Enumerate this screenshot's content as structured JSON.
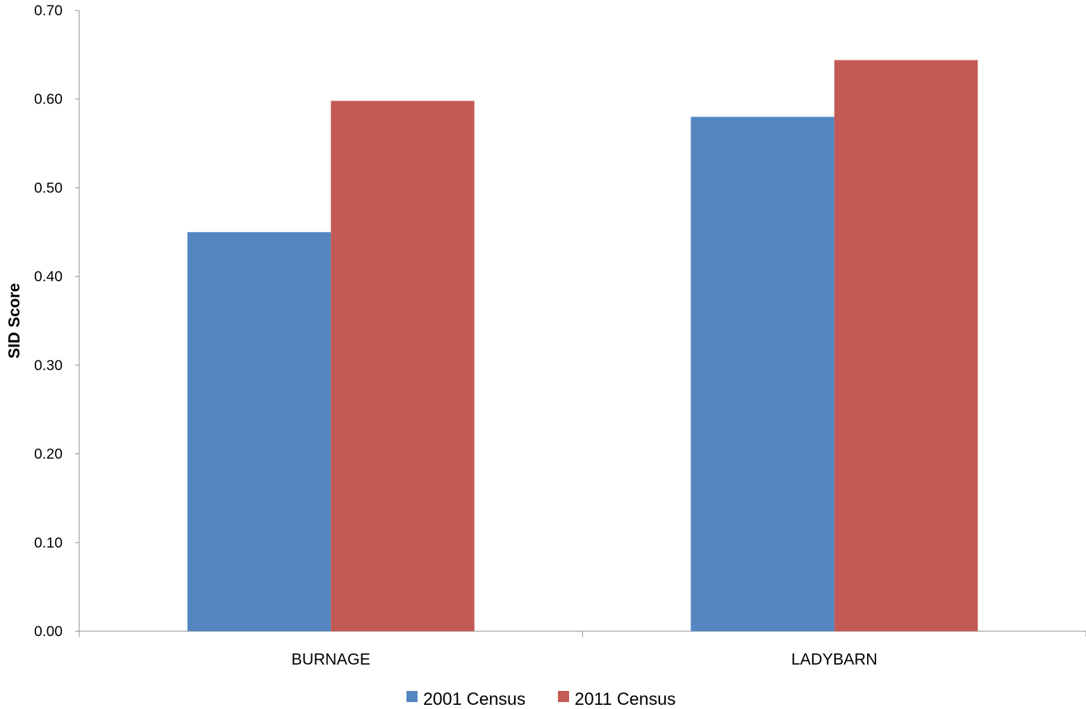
{
  "chart_data": {
    "type": "bar",
    "title": "",
    "xlabel": "",
    "ylabel": "SID Score",
    "ylim": [
      0,
      0.7
    ],
    "y_ticks": [
      "0.00",
      "0.10",
      "0.20",
      "0.30",
      "0.40",
      "0.50",
      "0.60",
      "0.70"
    ],
    "y_tick_values": [
      0,
      0.1,
      0.2,
      0.3,
      0.4,
      0.5,
      0.6,
      0.7
    ],
    "categories": [
      "BURNAGE",
      "LADYBARN"
    ],
    "series": [
      {
        "name": "2001 Census",
        "color": "#5487c1",
        "values": [
          0.45,
          0.58
        ]
      },
      {
        "name": "2011 Census",
        "color": "#c45a56",
        "values": [
          0.598,
          0.644
        ]
      }
    ],
    "grid": false,
    "legend_position": "bottom"
  }
}
